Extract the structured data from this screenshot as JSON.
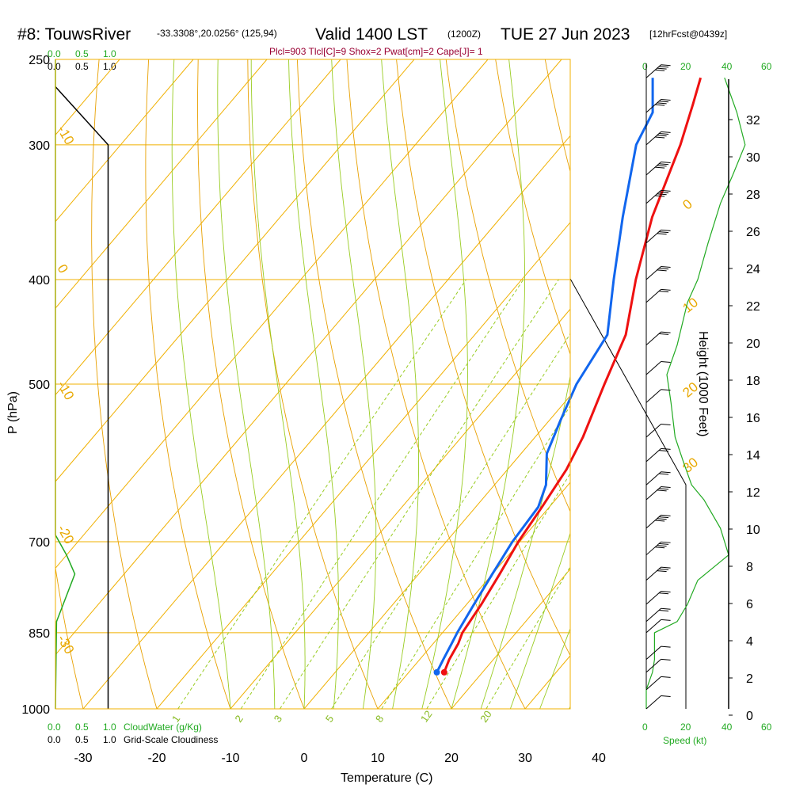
{
  "header": {
    "station": "#8: TouwsRiver",
    "location": "-33.3308°,20.0256° (125,94)",
    "valid": "Valid 1400 LST",
    "zulu": "(1200Z)",
    "date": "TUE 27 Jun 2023",
    "forecast": "[12hrFcst@0439z]"
  },
  "indices": "Plcl=903 Tlcl[C]=9 Shox=2 Pwat[cm]=2 Cape[J]= 1",
  "cloudwater_scale": {
    "labels": [
      "0.0",
      "0.5",
      "1.0"
    ],
    "title": "CloudWater (g/Kg)"
  },
  "cloudiness_scale": {
    "labels": [
      "0.0",
      "0.5",
      "1.0"
    ],
    "title": "Grid-Scale Cloudiness"
  },
  "speed_scale": {
    "labels": [
      "0",
      "20",
      "40",
      "60"
    ],
    "title": "Speed (kt)"
  },
  "colors": {
    "temperature": "#ee1111",
    "dewpoint": "#1166ee",
    "isotherm": "#f0b000",
    "dry_adiabat": "#e8a000",
    "moist_adiabat": "#99cc22",
    "mixing_ratio": "#99cc22",
    "speed": "#22aa22",
    "cloud": "#000000"
  },
  "chart_data": {
    "type": "line",
    "title": "#8: TouwsRiver  Valid 1400 LST (1200Z) TUE 27 Jun 2023",
    "xlabel": "Temperature (C)",
    "ylabel": "P (hPa)",
    "y2label": "Height (1000 Feet)",
    "xlim": [
      -35,
      35
    ],
    "ylim": [
      1000,
      250
    ],
    "yscale": "log",
    "x_ticks": [
      -30,
      -20,
      -10,
      0,
      10,
      20,
      30,
      40
    ],
    "y_ticks": [
      250,
      300,
      400,
      500,
      700,
      850,
      1000
    ],
    "height_ticks": [
      0,
      2,
      4,
      6,
      8,
      10,
      12,
      14,
      16,
      18,
      20,
      22,
      24,
      26,
      28,
      30,
      32
    ],
    "isotherm_labels": [
      "0",
      "10",
      "20",
      "30",
      "-10",
      "-20",
      "-30"
    ],
    "isotherm_label_values": [
      -10,
      0,
      10,
      20,
      30
    ],
    "mixing_ratio_labels": [
      1,
      2,
      3,
      5,
      8,
      12,
      20
    ],
    "series": [
      {
        "name": "Temperature",
        "points": [
          [
            14.8,
            925
          ],
          [
            14.0,
            900
          ],
          [
            13.4,
            870
          ],
          [
            12.7,
            850
          ],
          [
            12.0,
            800
          ],
          [
            11.0,
            750
          ],
          [
            9.8,
            700
          ],
          [
            9.0,
            650
          ],
          [
            8.0,
            600
          ],
          [
            6.5,
            560
          ],
          [
            3.3,
            500
          ],
          [
            0.5,
            450
          ],
          [
            -4.5,
            400
          ],
          [
            -9.5,
            350
          ],
          [
            -14.0,
            300
          ],
          [
            -17.0,
            275
          ],
          [
            -19.0,
            260
          ]
        ]
      },
      {
        "name": "Dewpoint",
        "points": [
          [
            13.8,
            925
          ],
          [
            13.2,
            900
          ],
          [
            12.5,
            870
          ],
          [
            12.0,
            850
          ],
          [
            11.0,
            800
          ],
          [
            10.0,
            750
          ],
          [
            9.0,
            700
          ],
          [
            8.5,
            650
          ],
          [
            7.0,
            620
          ],
          [
            3.5,
            580
          ],
          [
            1.5,
            540
          ],
          [
            -0.5,
            500
          ],
          [
            -2.0,
            450
          ],
          [
            -7.5,
            400
          ],
          [
            -13.5,
            350
          ],
          [
            -20.0,
            300
          ],
          [
            -21.5,
            280
          ],
          [
            -25.5,
            260
          ]
        ]
      }
    ],
    "height_axis": {
      "pressures_hPa": [
        1000,
        250
      ],
      "feet_thousand": [
        0,
        33
      ]
    },
    "speed_profile_kt": [
      [
        0,
        1000
      ],
      [
        0,
        960
      ],
      [
        3,
        925
      ],
      [
        4,
        900
      ],
      [
        4,
        850
      ],
      [
        15,
        830
      ],
      [
        20,
        800
      ],
      [
        25,
        760
      ],
      [
        40,
        720
      ],
      [
        36,
        680
      ],
      [
        28,
        640
      ],
      [
        22,
        620
      ],
      [
        18,
        590
      ],
      [
        14,
        560
      ],
      [
        12,
        520
      ],
      [
        10,
        490
      ],
      [
        15,
        460
      ],
      [
        20,
        420
      ],
      [
        25,
        400
      ],
      [
        30,
        370
      ],
      [
        36,
        340
      ],
      [
        42,
        320
      ],
      [
        48,
        300
      ],
      [
        44,
        280
      ],
      [
        38,
        260
      ]
    ],
    "cloudiness_profile": [
      [
        0.95,
        1000
      ],
      [
        0.95,
        860
      ],
      [
        0.95,
        780
      ],
      [
        0.95,
        500
      ],
      [
        0.95,
        300
      ],
      [
        0.0,
        265
      ]
    ],
    "cloudwater_profile": [
      [
        0.0,
        1000
      ],
      [
        0.02,
        830
      ],
      [
        0.35,
        750
      ],
      [
        0.2,
        720
      ],
      [
        0.0,
        690
      ],
      [
        0.0,
        250
      ]
    ]
  }
}
